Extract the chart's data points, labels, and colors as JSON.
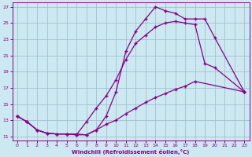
{
  "xlabel": "Windchill (Refroidissement éolien,°C)",
  "bg_color": "#cce8f0",
  "line_color": "#880088",
  "grid_color": "#99bbcc",
  "xlim": [
    -0.5,
    23.5
  ],
  "ylim": [
    10.5,
    27.5
  ],
  "xticks": [
    0,
    1,
    2,
    3,
    4,
    5,
    6,
    7,
    8,
    9,
    10,
    11,
    12,
    13,
    14,
    15,
    16,
    17,
    18,
    19,
    20,
    21,
    22,
    23
  ],
  "yticks": [
    11,
    13,
    15,
    17,
    19,
    21,
    23,
    25,
    27
  ],
  "line1_x": [
    0,
    1,
    2,
    3,
    4,
    5,
    6,
    7,
    8,
    9,
    10,
    11,
    12,
    13,
    14,
    15,
    16,
    17,
    18,
    19,
    20,
    23
  ],
  "line1_y": [
    13.5,
    12.8,
    11.8,
    11.4,
    11.3,
    11.3,
    11.2,
    11.2,
    11.8,
    13.5,
    16.5,
    21.5,
    24.0,
    25.5,
    27.0,
    26.5,
    26.2,
    25.5,
    25.5,
    25.5,
    23.2,
    16.5
  ],
  "line2_x": [
    0,
    1,
    2,
    3,
    4,
    5,
    6,
    7,
    8,
    9,
    10,
    11,
    12,
    13,
    14,
    15,
    16,
    17,
    18,
    19,
    20,
    23
  ],
  "line2_y": [
    13.5,
    12.8,
    11.8,
    11.4,
    11.3,
    11.3,
    11.2,
    12.8,
    14.5,
    16.0,
    18.0,
    20.5,
    22.5,
    23.5,
    24.5,
    25.0,
    25.2,
    25.0,
    24.8,
    20.0,
    19.5,
    16.5
  ],
  "line3_x": [
    0,
    1,
    2,
    3,
    4,
    5,
    6,
    7,
    8,
    9,
    10,
    11,
    12,
    13,
    14,
    15,
    16,
    17,
    18,
    23
  ],
  "line3_y": [
    13.5,
    12.8,
    11.8,
    11.4,
    11.3,
    11.3,
    11.3,
    11.2,
    11.8,
    12.5,
    13.0,
    13.8,
    14.5,
    15.2,
    15.8,
    16.3,
    16.8,
    17.2,
    17.8,
    16.5
  ]
}
